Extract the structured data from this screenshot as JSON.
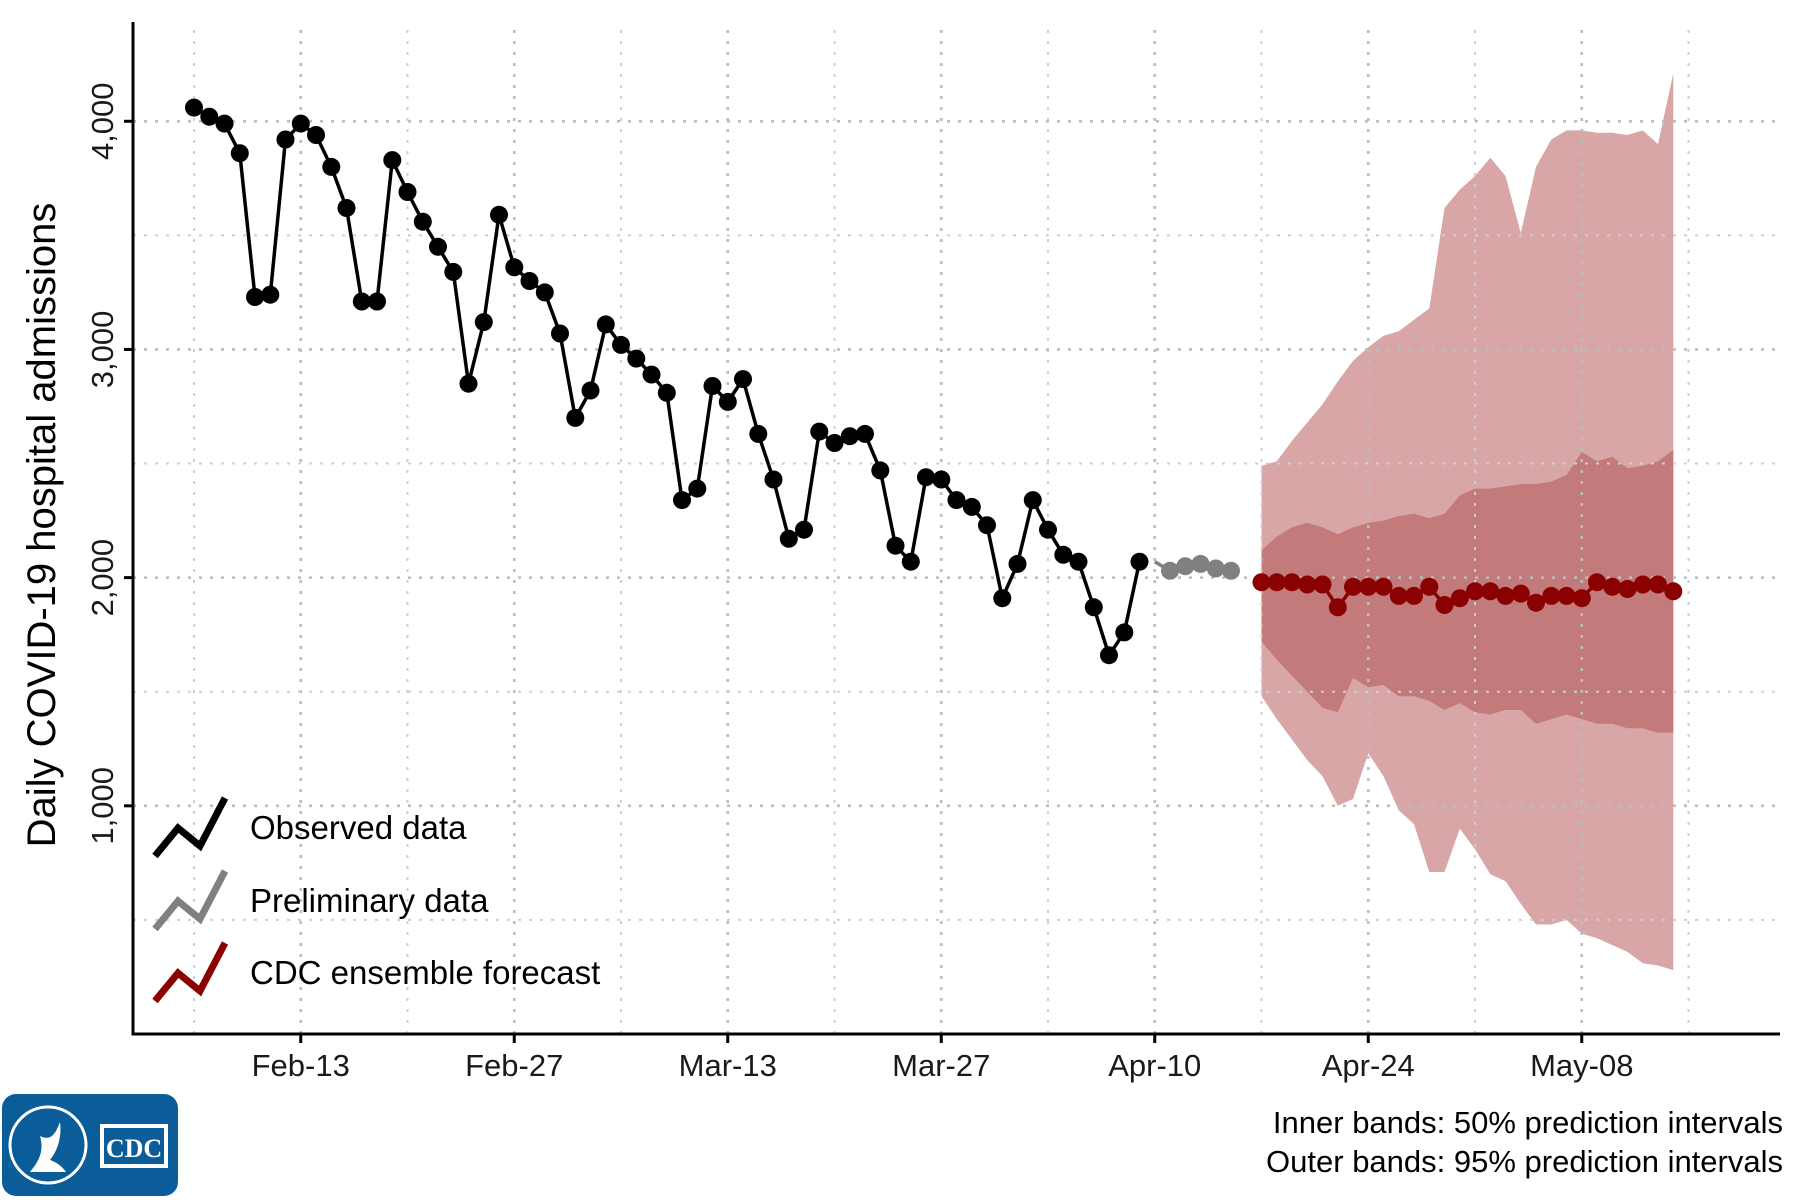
{
  "chart_data": {
    "type": "line",
    "title": "",
    "xlabel": "",
    "ylabel": "Daily COVID-19 hospital admissions",
    "ylim": [
      0,
      4400
    ],
    "xlim": [
      "2023-02-02",
      "2023-05-21"
    ],
    "y_ticks": [
      1000,
      2000,
      3000,
      4000
    ],
    "y_tick_labels": [
      "1,000",
      "2,000",
      "3,000",
      "4,000"
    ],
    "x_ticks": [
      "2023-02-13",
      "2023-02-27",
      "2023-03-13",
      "2023-03-27",
      "2023-04-10",
      "2023-04-24",
      "2023-05-08"
    ],
    "x_tick_labels": [
      "Feb-13",
      "Feb-27",
      "Mar-13",
      "Mar-27",
      "Apr-10",
      "Apr-24",
      "May-08"
    ],
    "grid": true,
    "legend_position": "bottom-left",
    "legend": [
      {
        "label": "Observed data",
        "color": "#000000"
      },
      {
        "label": "Preliminary data",
        "color": "#808080"
      },
      {
        "label": "CDC ensemble forecast",
        "color": "#8b0000"
      }
    ],
    "notes": [
      "Inner bands: 50% prediction intervals",
      "Outer bands: 95% prediction intervals"
    ],
    "series": [
      {
        "name": "Observed data",
        "color": "#000000",
        "start_date": "2023-02-06",
        "values": [
          4060,
          4020,
          3990,
          3860,
          3230,
          3240,
          3920,
          3990,
          3940,
          3800,
          3620,
          3210,
          3210,
          3830,
          3690,
          3560,
          3450,
          3340,
          2850,
          3120,
          3590,
          3360,
          3300,
          3250,
          3070,
          2700,
          2820,
          3110,
          3020,
          2960,
          2890,
          2810,
          2340,
          2390,
          2840,
          2770,
          2870,
          2630,
          2430,
          2170,
          2210,
          2640,
          2590,
          2620,
          2630,
          2470,
          2140,
          2070,
          2440,
          2430,
          2340,
          2310,
          2230,
          1910,
          2060,
          2340,
          2210,
          2100,
          2070,
          1870,
          1660,
          1760,
          2070
        ]
      },
      {
        "name": "Preliminary data",
        "color": "#808080",
        "start_date": "2023-04-10",
        "values": [
          2070,
          2030,
          2050,
          2060,
          2040,
          2030
        ]
      },
      {
        "name": "CDC ensemble forecast",
        "color": "#8b0000",
        "start_date": "2023-04-17",
        "values": [
          1980,
          1980,
          1980,
          1970,
          1970,
          1870,
          1960,
          1960,
          1960,
          1920,
          1920,
          1960,
          1880,
          1910,
          1940,
          1940,
          1920,
          1930,
          1890,
          1920,
          1920,
          1910,
          1980,
          1960,
          1950,
          1970,
          1970,
          1940
        ],
        "pi50_lower": [
          1720,
          1640,
          1570,
          1500,
          1430,
          1410,
          1560,
          1520,
          1530,
          1480,
          1480,
          1460,
          1420,
          1450,
          1410,
          1400,
          1420,
          1420,
          1360,
          1380,
          1400,
          1380,
          1360,
          1360,
          1340,
          1340,
          1320,
          1320
        ],
        "pi50_upper": [
          2120,
          2180,
          2220,
          2240,
          2220,
          2190,
          2220,
          2240,
          2250,
          2270,
          2280,
          2260,
          2280,
          2360,
          2390,
          2390,
          2400,
          2410,
          2410,
          2420,
          2450,
          2550,
          2510,
          2530,
          2480,
          2490,
          2510,
          2560
        ],
        "pi95_lower": [
          1480,
          1380,
          1290,
          1200,
          1130,
          1000,
          1030,
          1230,
          1130,
          980,
          920,
          710,
          710,
          900,
          810,
          700,
          670,
          570,
          480,
          480,
          500,
          440,
          420,
          390,
          360,
          310,
          300,
          280
        ],
        "pi95_upper": [
          2490,
          2510,
          2600,
          2680,
          2760,
          2860,
          2950,
          3010,
          3060,
          3080,
          3130,
          3180,
          3620,
          3700,
          3760,
          3840,
          3760,
          3510,
          3800,
          3920,
          3960,
          3960,
          3950,
          3950,
          3940,
          3960,
          3900,
          4210
        ]
      }
    ]
  },
  "logo": {
    "text": "CDC",
    "color": "#0b5d99"
  }
}
